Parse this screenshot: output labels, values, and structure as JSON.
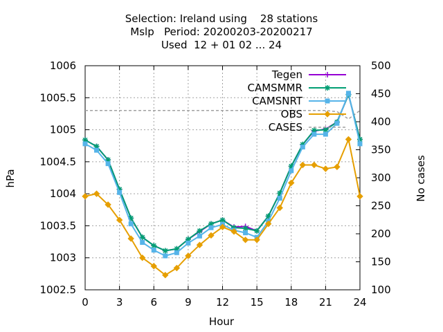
{
  "chart_data": {
    "type": "line",
    "title_lines": [
      "Selection: Ireland using    28 stations",
      "Mslp   Period: 20200203-20200217",
      "Used  12 + 01 02 ... 24"
    ],
    "xlabel": "Hour",
    "ylabel": "hPa",
    "y2label": "No cases",
    "xlim": [
      0,
      24
    ],
    "ylim": [
      1002.5,
      1006
    ],
    "y2lim": [
      100,
      500
    ],
    "x_ticks": [
      "0",
      "3",
      "6",
      "9",
      "12",
      "15",
      "18",
      "21",
      "24"
    ],
    "y_ticks": [
      "1002.5",
      "1003",
      "1003.5",
      "1004",
      "1004.5",
      "1005",
      "1005.5",
      "1006"
    ],
    "y2_ticks": [
      "100",
      "150",
      "200",
      "250",
      "300",
      "350",
      "400",
      "450",
      "500"
    ],
    "grid": true,
    "legend_position": "top-right",
    "x": [
      0,
      1,
      2,
      3,
      4,
      5,
      6,
      7,
      8,
      9,
      10,
      11,
      12,
      13,
      14,
      15,
      16,
      17,
      18,
      19,
      20,
      21,
      22,
      23,
      24
    ],
    "series": [
      {
        "name": "Tegen",
        "color": "#9400d3",
        "marker": "plus",
        "values": [
          1004.84,
          1004.74,
          1004.53,
          1004.07,
          1003.62,
          1003.32,
          1003.19,
          1003.11,
          1003.14,
          1003.29,
          1003.41,
          1003.53,
          1003.59,
          1003.48,
          1003.49,
          1003.42,
          1003.65,
          1004.01,
          1004.43,
          1004.77,
          1004.98,
          1005.01,
          1005.12,
          1005.55,
          1004.85
        ]
      },
      {
        "name": "CAMSMMR",
        "color": "#009e73",
        "marker": "star",
        "values": [
          1004.84,
          1004.74,
          1004.53,
          1004.07,
          1003.62,
          1003.32,
          1003.19,
          1003.11,
          1003.14,
          1003.29,
          1003.42,
          1003.53,
          1003.59,
          1003.47,
          1003.46,
          1003.42,
          1003.65,
          1004.01,
          1004.43,
          1004.77,
          1004.99,
          1005.0,
          1005.12,
          1005.55,
          1004.85
        ]
      },
      {
        "name": "CAMSNRT",
        "color": "#56b4e9",
        "marker": "box",
        "values": [
          1004.78,
          1004.68,
          1004.47,
          1004.02,
          1003.53,
          1003.24,
          1003.12,
          1003.03,
          1003.08,
          1003.23,
          1003.34,
          1003.47,
          1003.52,
          1003.43,
          1003.39,
          1003.32,
          1003.57,
          1003.93,
          1004.36,
          1004.73,
          1004.93,
          1004.93,
          1005.1,
          1005.57,
          1004.78
        ]
      },
      {
        "name": "OBS",
        "color": "#e69f00",
        "marker": "diamond",
        "values": [
          1003.96,
          1004.0,
          1003.83,
          1003.59,
          1003.3,
          1003.0,
          1002.87,
          1002.73,
          1002.84,
          1003.03,
          1003.2,
          1003.35,
          1003.48,
          1003.41,
          1003.28,
          1003.28,
          1003.53,
          1003.78,
          1004.17,
          1004.45,
          1004.45,
          1004.39,
          1004.42,
          1004.85,
          1003.96
        ]
      },
      {
        "name": "CASES",
        "color": "#a0a0a0",
        "axis": "y2",
        "dashed": true,
        "values": [
          420,
          420,
          420,
          420,
          420,
          420,
          420,
          420,
          420,
          420,
          420,
          420,
          420,
          420,
          420,
          420,
          420,
          420,
          420,
          420,
          420,
          420,
          418,
          405,
          420
        ]
      }
    ]
  }
}
